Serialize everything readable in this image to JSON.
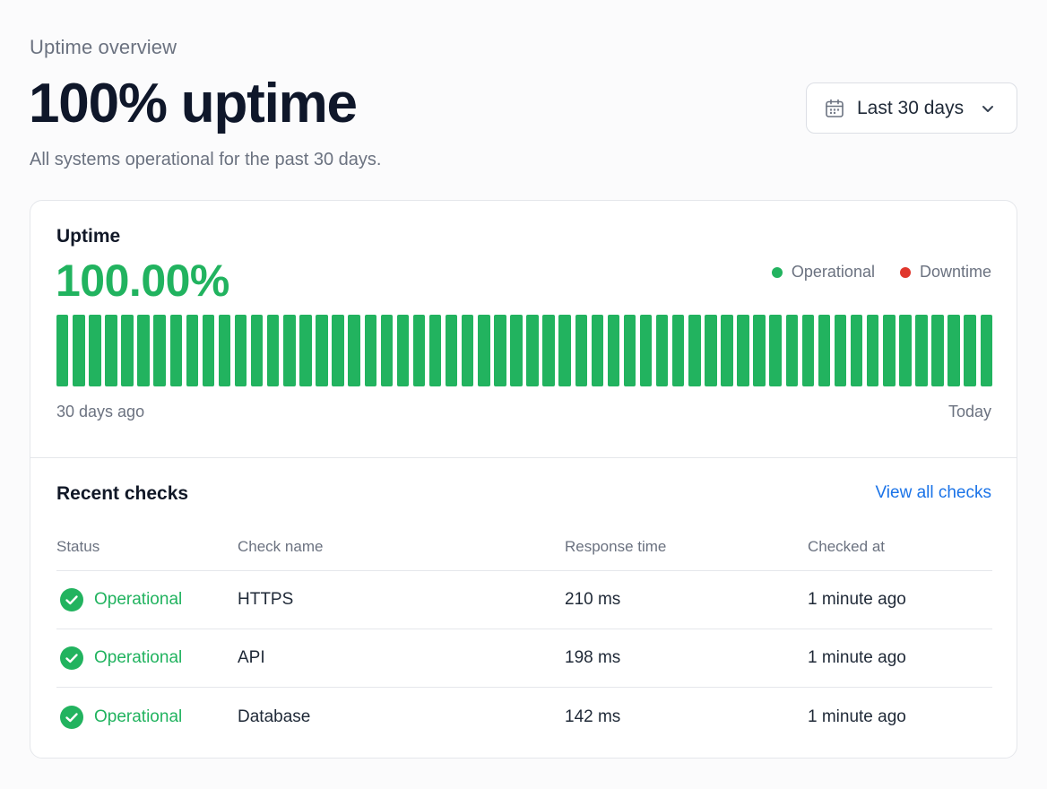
{
  "header": {
    "eyebrow": "Uptime overview",
    "headline": "100% uptime",
    "subline": "All systems operational for the past 30 days."
  },
  "range_select": {
    "icon": "calendar-icon",
    "label": "Last 30 days",
    "chevron_icon": "chevron-down-icon"
  },
  "uptime_card": {
    "title": "Uptime",
    "percentage": "100.00%",
    "legend": [
      {
        "label": "Operational",
        "color": "#22b35f"
      },
      {
        "label": "Downtime",
        "color": "#e0362c"
      }
    ],
    "bar_statuses": [
      "operational",
      "operational",
      "operational",
      "operational",
      "operational",
      "operational",
      "operational",
      "operational",
      "operational",
      "operational",
      "operational",
      "operational",
      "operational",
      "operational",
      "operational",
      "operational",
      "operational",
      "operational",
      "operational",
      "operational",
      "operational",
      "operational",
      "operational",
      "operational",
      "operational",
      "operational",
      "operational",
      "operational",
      "operational",
      "operational",
      "operational",
      "operational",
      "operational",
      "operational",
      "operational",
      "operational",
      "operational",
      "operational",
      "operational",
      "operational",
      "operational",
      "operational",
      "operational",
      "operational",
      "operational",
      "operational",
      "operational",
      "operational",
      "operational",
      "operational",
      "operational",
      "operational",
      "operational",
      "operational",
      "operational",
      "operational",
      "operational",
      "operational"
    ],
    "axis_start": "30 days ago",
    "axis_end": "Today"
  },
  "colors": {
    "operational": "#22b35f",
    "downtime": "#e0362c",
    "link": "#1a73e8"
  },
  "recent_checks": {
    "title": "Recent checks",
    "view_all_label": "View all checks",
    "columns": [
      "Status",
      "Check name",
      "Response time",
      "Checked at"
    ],
    "rows": [
      {
        "status": "Operational",
        "name": "HTTPS",
        "response": "210 ms",
        "checked_at": "1 minute ago"
      },
      {
        "status": "Operational",
        "name": "API",
        "response": "198 ms",
        "checked_at": "1 minute ago"
      },
      {
        "status": "Operational",
        "name": "Database",
        "response": "142 ms",
        "checked_at": "1 minute ago"
      }
    ]
  }
}
